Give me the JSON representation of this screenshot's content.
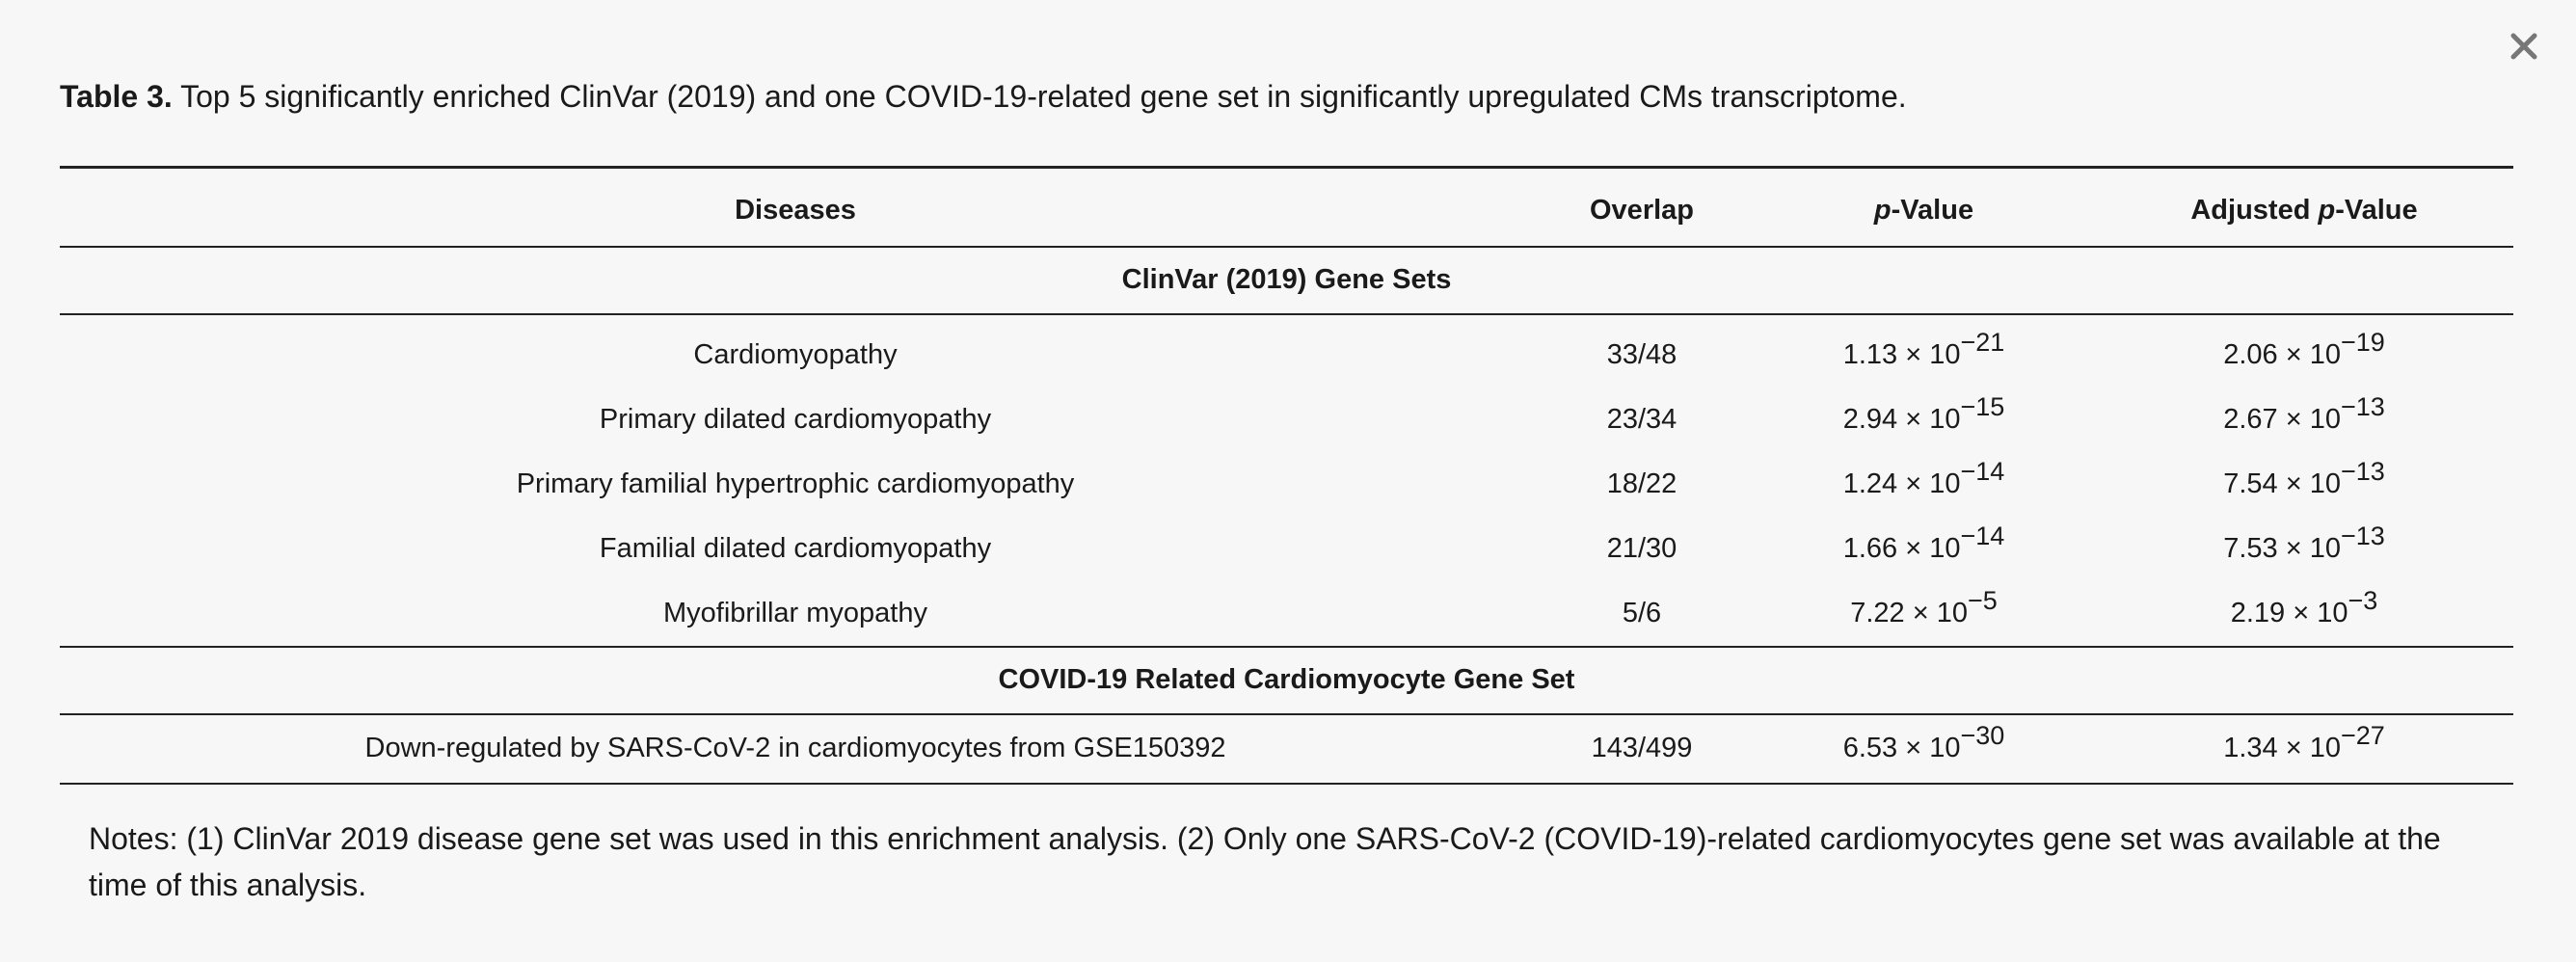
{
  "close": {
    "icon": "close-icon"
  },
  "caption": {
    "label": "Table 3.",
    "text": "Top 5 significantly enriched ClinVar (2019) and one COVID-19-related gene set in significantly upregulated CMs transcriptome."
  },
  "table": {
    "headers": {
      "diseases": "Diseases",
      "overlap": "Overlap",
      "pvalue_p": "p",
      "pvalue_rest": "-Value",
      "adj_prefix": "Adjusted ",
      "adj_p": "p",
      "adj_rest": "-Value"
    },
    "sections": [
      {
        "title": "ClinVar (2019) Gene Sets",
        "rows": [
          {
            "disease": "Cardiomyopathy",
            "overlap": "33/48",
            "p_base": "1.13 × 10",
            "p_exp": "−21",
            "adj_base": "2.06 × 10",
            "adj_exp": "−19"
          },
          {
            "disease": "Primary dilated cardiomyopathy",
            "overlap": "23/34",
            "p_base": "2.94 × 10",
            "p_exp": "−15",
            "adj_base": "2.67 × 10",
            "adj_exp": "−13"
          },
          {
            "disease": "Primary familial hypertrophic cardiomyopathy",
            "overlap": "18/22",
            "p_base": "1.24 × 10",
            "p_exp": "−14",
            "adj_base": "7.54 × 10",
            "adj_exp": "−13"
          },
          {
            "disease": "Familial dilated cardiomyopathy",
            "overlap": "21/30",
            "p_base": "1.66 × 10",
            "p_exp": "−14",
            "adj_base": "7.53 × 10",
            "adj_exp": "−13"
          },
          {
            "disease": "Myofibrillar myopathy",
            "overlap": "5/6",
            "p_base": "7.22 × 10",
            "p_exp": "−5",
            "adj_base": "2.19 × 10",
            "adj_exp": "−3"
          }
        ]
      },
      {
        "title": "COVID-19 Related Cardiomyocyte Gene Set",
        "rows": [
          {
            "disease": "Down-regulated by SARS-CoV-2 in cardiomyocytes from GSE150392",
            "overlap": "143/499",
            "p_base": "6.53 × 10",
            "p_exp": "−30",
            "adj_base": "1.34 × 10",
            "adj_exp": "−27"
          }
        ]
      }
    ]
  },
  "notes": "Notes: (1) ClinVar 2019 disease gene set was used in this enrichment analysis. (2) Only one SARS-CoV-2 (COVID-19)-related cardiomyocytes gene set was available at the time of this analysis."
}
